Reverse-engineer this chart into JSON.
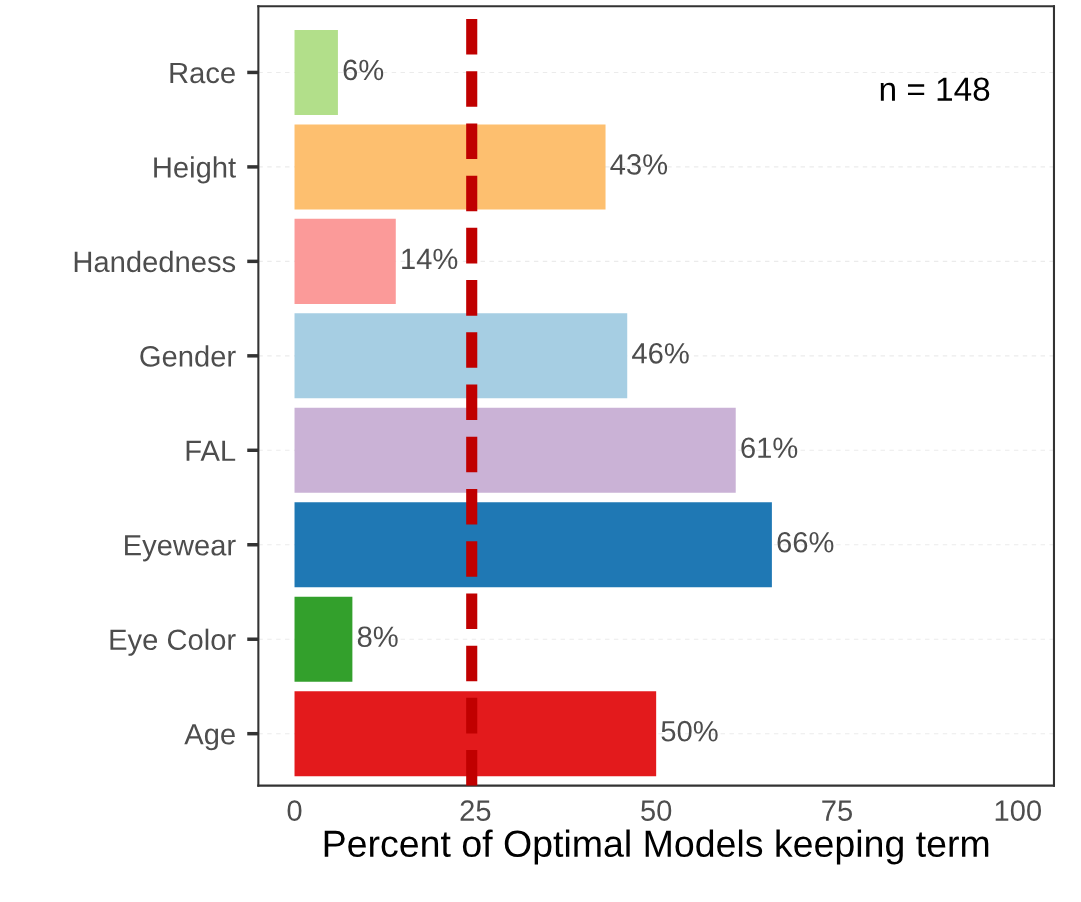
{
  "chart_data": {
    "type": "bar",
    "orientation": "horizontal",
    "xlabel": "Percent of Optimal Models keeping term",
    "categories": [
      "Race",
      "Height",
      "Handedness",
      "Gender",
      "FAL",
      "Eyewear",
      "Eye Color",
      "Age"
    ],
    "values": [
      6,
      43,
      14,
      46,
      61,
      66,
      8,
      50
    ],
    "colors": [
      "#b2df8a",
      "#fdbf6f",
      "#fb9a99",
      "#a6cee3",
      "#cab2d6",
      "#1f78b4",
      "#33a02c",
      "#e31a1c"
    ],
    "value_labels": [
      "6%",
      "43%",
      "14%",
      "46%",
      "61%",
      "66%",
      "8%",
      "50%"
    ],
    "xlim": [
      -5,
      105
    ],
    "xticks": [
      0,
      25,
      50,
      75,
      100
    ],
    "ref_lines": [
      {
        "axis": "x",
        "value": 24.5,
        "color": "#c00000",
        "line_style": "dashed"
      }
    ],
    "annotations": [
      "n = 148"
    ],
    "grid": "y"
  }
}
